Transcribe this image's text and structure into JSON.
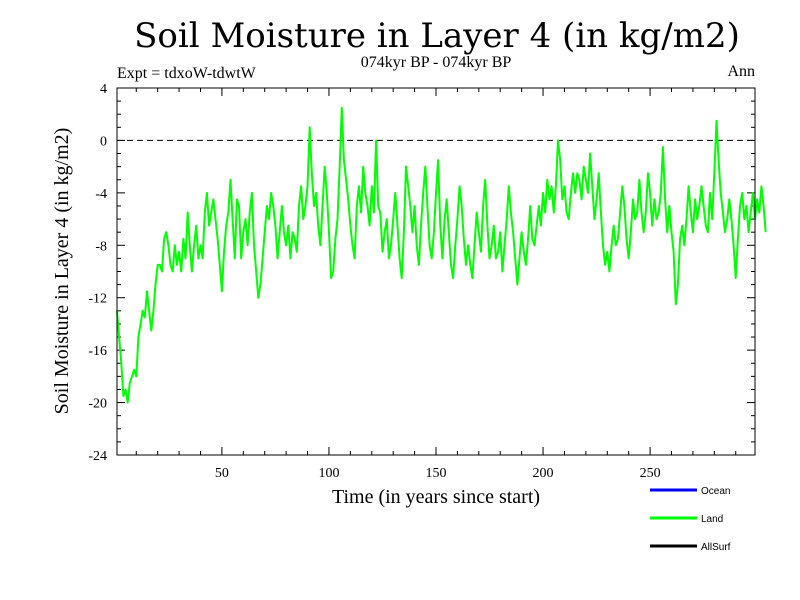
{
  "chart_data": {
    "type": "line",
    "title": "Soil Moisture in Layer 4 (in kg/m2)",
    "subtitle": "074kyr BP - 074kyr BP",
    "expt_label": "Expt = tdxoW-tdwtW",
    "period_label": "Ann",
    "xlabel": "Time (in years since start)",
    "ylabel": "Soil Moisture in Layer 4 (in kg/m2)",
    "xlim": [
      1,
      299
    ],
    "ylim": [
      -24,
      4
    ],
    "xticks": [
      50,
      100,
      150,
      200,
      250
    ],
    "yticks": [
      -24,
      -20,
      -16,
      -12,
      -8,
      -4,
      0,
      4
    ],
    "reference_line": 0,
    "legend": [
      {
        "name": "Ocean",
        "color": "#0000ff"
      },
      {
        "name": "Land",
        "color": "#00ff00"
      },
      {
        "name": "AllSurf",
        "color": "#000000"
      }
    ],
    "series": [
      {
        "name": "Land",
        "color": "#00ff00",
        "x_start": 1,
        "x_step": 1,
        "values": [
          -13.0,
          -15.0,
          -17.0,
          -19.5,
          -19.0,
          -20.0,
          -18.5,
          -18.0,
          -17.5,
          -18.0,
          -15.0,
          -14.0,
          -13.0,
          -13.5,
          -11.5,
          -13.0,
          -14.5,
          -13.0,
          -11.0,
          -9.5,
          -9.5,
          -10.0,
          -7.5,
          -7.0,
          -8.0,
          -9.5,
          -10.0,
          -8.0,
          -9.5,
          -8.5,
          -10.0,
          -7.5,
          -9.0,
          -5.5,
          -8.0,
          -10.0,
          -8.0,
          -6.5,
          -9.0,
          -8.0,
          -9.0,
          -5.5,
          -4.0,
          -6.5,
          -5.5,
          -4.5,
          -6.0,
          -7.5,
          -9.5,
          -11.5,
          -8.5,
          -6.5,
          -5.5,
          -3.0,
          -6.0,
          -9.0,
          -4.5,
          -5.0,
          -9.0,
          -7.0,
          -6.0,
          -8.0,
          -5.5,
          -4.0,
          -8.0,
          -10.0,
          -12.0,
          -11.0,
          -9.0,
          -7.0,
          -5.0,
          -6.0,
          -4.0,
          -5.0,
          -6.5,
          -9.0,
          -7.0,
          -5.0,
          -7.0,
          -8.0,
          -6.5,
          -9.0,
          -7.0,
          -7.5,
          -8.5,
          -5.0,
          -3.5,
          -6.0,
          -5.0,
          -3.5,
          1.0,
          -2.5,
          -5.0,
          -4.0,
          -6.5,
          -8.0,
          -5.0,
          -2.0,
          -4.0,
          -7.0,
          -10.5,
          -10.0,
          -7.5,
          -6.0,
          -2.0,
          2.5,
          -1.5,
          -3.0,
          -4.5,
          -6.5,
          -8.0,
          -9.0,
          -5.0,
          -3.5,
          -5.5,
          -2.0,
          -4.0,
          -5.0,
          -6.5,
          -3.5,
          -5.5,
          0.0,
          -5.0,
          -5.5,
          -8.5,
          -7.0,
          -6.0,
          -9.0,
          -8.0,
          -6.0,
          -4.0,
          -6.5,
          -9.0,
          -10.5,
          -7.0,
          -2.0,
          -3.5,
          -5.0,
          -7.0,
          -5.0,
          -8.0,
          -9.5,
          -6.5,
          -4.0,
          -2.0,
          -5.0,
          -8.0,
          -9.0,
          -7.0,
          -4.0,
          -1.5,
          -6.5,
          -9.0,
          -6.0,
          -4.5,
          -7.0,
          -9.5,
          -10.5,
          -8.0,
          -6.0,
          -3.5,
          -5.0,
          -7.5,
          -9.5,
          -8.0,
          -9.5,
          -10.5,
          -8.0,
          -5.5,
          -7.0,
          -8.5,
          -5.0,
          -3.0,
          -6.5,
          -9.0,
          -8.0,
          -6.5,
          -9.0,
          -8.5,
          -7.0,
          -10.0,
          -8.0,
          -6.0,
          -3.5,
          -5.5,
          -7.0,
          -9.0,
          -11.0,
          -9.0,
          -7.0,
          -8.5,
          -9.5,
          -7.5,
          -5.0,
          -7.5,
          -8.0,
          -6.5,
          -5.0,
          -6.5,
          -4.0,
          -5.5,
          -3.0,
          -4.5,
          -3.5,
          -5.5,
          -3.5,
          0.0,
          -1.5,
          -4.5,
          -3.5,
          -5.5,
          -6.0,
          -4.0,
          -2.5,
          -4.0,
          -2.5,
          -3.0,
          -4.5,
          -2.0,
          -3.0,
          -4.0,
          -1.0,
          -3.5,
          -6.0,
          -4.5,
          -2.5,
          -5.5,
          -8.0,
          -9.5,
          -8.5,
          -10.0,
          -8.0,
          -6.5,
          -8.0,
          -7.5,
          -5.5,
          -3.5,
          -5.0,
          -7.5,
          -9.0,
          -7.0,
          -4.5,
          -6.0,
          -5.5,
          -3.0,
          -5.5,
          -7.0,
          -5.5,
          -2.5,
          -4.0,
          -6.5,
          -4.5,
          -6.0,
          -5.5,
          -4.0,
          -0.5,
          -4.5,
          -7.0,
          -5.0,
          -7.0,
          -8.5,
          -12.5,
          -11.0,
          -7.5,
          -6.5,
          -8.0,
          -6.0,
          -3.5,
          -5.5,
          -7.0,
          -4.5,
          -6.0,
          -5.0,
          -3.5,
          -5.0,
          -6.5,
          -7.0,
          -4.0,
          -6.0,
          -2.5,
          1.5,
          -1.5,
          -4.0,
          -5.5,
          -7.0,
          -6.0,
          -4.5,
          -6.0,
          -8.0,
          -10.5,
          -7.5,
          -5.0,
          -4.0,
          -6.0,
          -5.0,
          -7.0,
          -5.5,
          -4.0,
          -6.0,
          -4.5,
          -5.5,
          -3.5,
          -5.0,
          -7.0
        ]
      }
    ]
  }
}
